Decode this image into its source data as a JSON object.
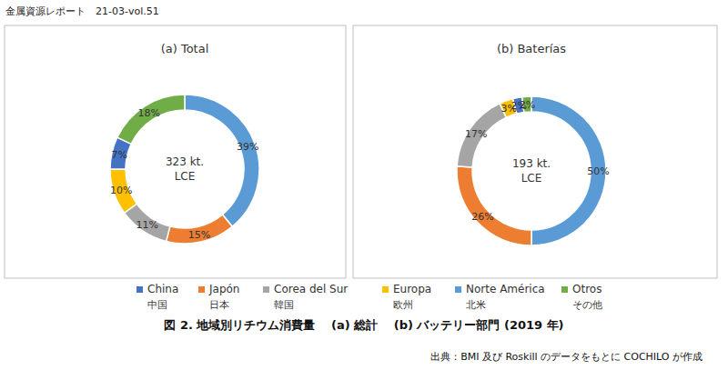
{
  "header": "金属資源レポート　21-03-vol.51",
  "caption": "図 2.  地域別リチウム消費量　 (a)  総計　 (b)  バッテリー部門 (2019 年)",
  "source": "出典：BMI 及び Roskill のデータをもとに COCHILO が作成",
  "legend_entries": [
    {
      "name": "China",
      "name_ja": "中国"
    },
    {
      "name": "Japón",
      "name_ja": "日本"
    },
    {
      "name": "Corea del Sur",
      "name_ja": "韓国"
    },
    {
      "name": "Europa",
      "name_ja": "欧州"
    },
    {
      "name": "Norte América",
      "name_ja": "北米"
    },
    {
      "name": "Otros",
      "name_ja": "その他"
    }
  ],
  "chart_data": [
    {
      "type": "pie",
      "title": "(a) Total",
      "center_text": [
        "323 kt.",
        "LCE"
      ],
      "categories": [
        "Norte América",
        "Japón",
        "Corea del Sur",
        "Europa",
        "China",
        "Otros"
      ],
      "values": [
        39,
        15,
        11,
        10,
        7,
        18
      ],
      "value_labels": [
        "39%",
        "15%",
        "11%",
        "10%",
        "7%",
        "18%"
      ],
      "colors": [
        "#5b9bd5",
        "#ed7d31",
        "#a5a5a5",
        "#ffc000",
        "#4472c4",
        "#70ad47"
      ],
      "data_labels": true
    },
    {
      "type": "pie",
      "title": "(b) Baterías",
      "center_text": [
        "193 kt.",
        "LCE"
      ],
      "categories": [
        "Norte América",
        "Japón",
        "Corea del Sur",
        "Europa",
        "China",
        "Otros"
      ],
      "values": [
        50,
        26,
        17,
        3,
        2,
        2
      ],
      "value_labels": [
        "50%",
        "26%",
        "17%",
        "3%",
        "2%",
        "2%"
      ],
      "colors": [
        "#5b9bd5",
        "#ed7d31",
        "#a5a5a5",
        "#ffc000",
        "#4472c4",
        "#70ad47"
      ],
      "data_labels": true
    }
  ]
}
